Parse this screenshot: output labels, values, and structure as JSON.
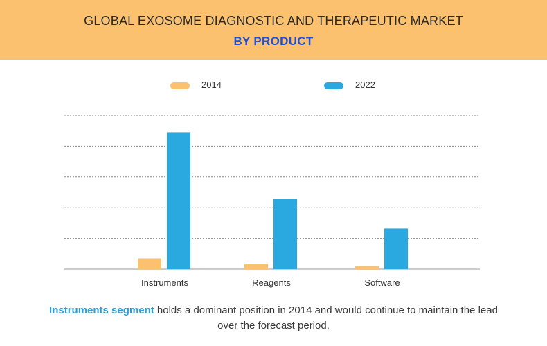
{
  "header": {
    "title": "GLOBAL EXOSOME DIAGNOSTIC AND THERAPEUTIC MARKET",
    "subtitle": "BY PRODUCT"
  },
  "colors": {
    "header_bg": "#fbc16f",
    "series_2014": "#fbc16f",
    "series_2022": "#2aa8e0"
  },
  "chart_data": {
    "type": "bar",
    "categories": [
      "Instruments",
      "Reagents",
      "Software"
    ],
    "series": [
      {
        "name": "2014",
        "values": [
          0.35,
          0.18,
          0.1
        ]
      },
      {
        "name": "2022",
        "values": [
          4.45,
          2.28,
          1.32
        ]
      }
    ],
    "ylim": [
      0,
      5
    ],
    "grid": true,
    "legend": "top"
  },
  "footer": {
    "highlight": "Instruments segment",
    "text": " holds a dominant position in 2014 and would continue to maintain the lead over the forecast period."
  }
}
